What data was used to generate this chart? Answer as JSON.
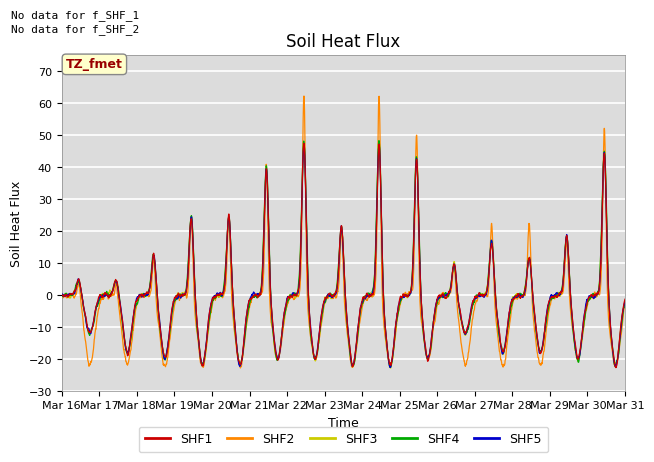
{
  "title": "Soil Heat Flux",
  "ylabel": "Soil Heat Flux",
  "xlabel": "Time",
  "ylim": [
    -30,
    75
  ],
  "yticks": [
    -30,
    -20,
    -10,
    0,
    10,
    20,
    30,
    40,
    50,
    60,
    70
  ],
  "bg_color": "#dcdcdc",
  "grid_color": "white",
  "note1": "No data for f_SHF_1",
  "note2": "No data for f_SHF_2",
  "tz_label": "TZ_fmet",
  "legend": [
    "SHF1",
    "SHF2",
    "SHF3",
    "SHF4",
    "SHF5"
  ],
  "colors": [
    "#cc0000",
    "#ff8800",
    "#cccc00",
    "#00aa00",
    "#0000cc"
  ],
  "xtick_labels": [
    "Mar 16",
    "Mar 17",
    "Mar 18",
    "Mar 19",
    "Mar 20",
    "Mar 21",
    "Mar 22",
    "Mar 23",
    "Mar 24",
    "Mar 25",
    "Mar 26",
    "Mar 27",
    "Mar 28",
    "Mar 29",
    "Mar 30",
    "Mar 31"
  ],
  "n_points": 2880,
  "days": 15
}
